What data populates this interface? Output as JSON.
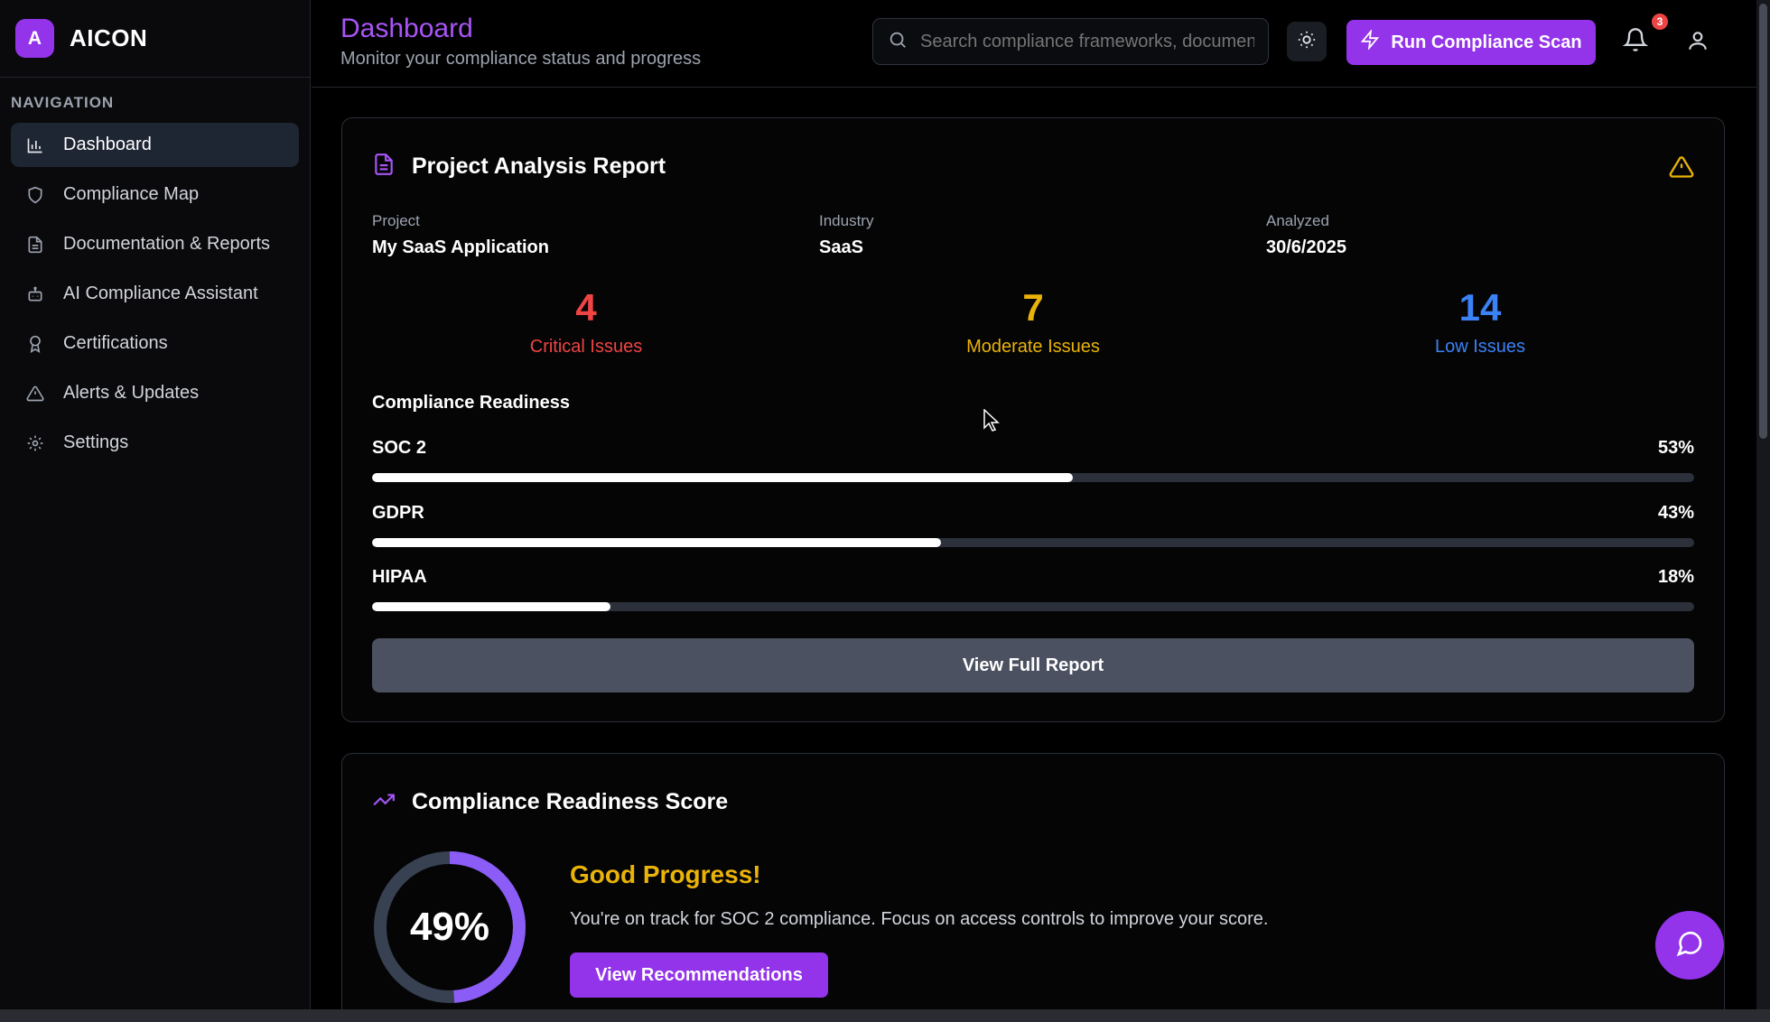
{
  "brand": {
    "logo_letter": "A",
    "name": "AICON"
  },
  "sidebar": {
    "section_title": "NAVIGATION",
    "items": [
      {
        "label": "Dashboard",
        "icon": "bar-chart-icon",
        "active": true
      },
      {
        "label": "Compliance Map",
        "icon": "shield-icon"
      },
      {
        "label": "Documentation & Reports",
        "icon": "document-icon"
      },
      {
        "label": "AI Compliance Assistant",
        "icon": "bot-icon"
      },
      {
        "label": "Certifications",
        "icon": "award-icon"
      },
      {
        "label": "Alerts & Updates",
        "icon": "warning-icon"
      },
      {
        "label": "Settings",
        "icon": "gear-icon"
      }
    ]
  },
  "header": {
    "title": "Dashboard",
    "subtitle": "Monitor your compliance status and progress",
    "search_placeholder": "Search compliance frameworks, documents...",
    "scan_label": "Run Compliance Scan",
    "notification_count": "3"
  },
  "report": {
    "title": "Project Analysis Report",
    "project_label": "Project",
    "project_value": "My SaaS Application",
    "industry_label": "Industry",
    "industry_value": "SaaS",
    "analyzed_label": "Analyzed",
    "analyzed_value": "30/6/2025",
    "critical_count": "4",
    "critical_label": "Critical Issues",
    "moderate_count": "7",
    "moderate_label": "Moderate Issues",
    "low_count": "14",
    "low_label": "Low Issues",
    "readiness_title": "Compliance Readiness",
    "frameworks": [
      {
        "name": "SOC 2",
        "percent_label": "53%",
        "value": 53
      },
      {
        "name": "GDPR",
        "percent_label": "43%",
        "value": 43
      },
      {
        "name": "HIPAA",
        "percent_label": "18%",
        "value": 18
      }
    ],
    "full_report_label": "View Full Report"
  },
  "score": {
    "title": "Compliance Readiness Score",
    "value": 49,
    "value_label": "49%",
    "headline": "Good Progress!",
    "description": "You're on track for SOC 2 compliance. Focus on access controls to improve your score.",
    "button_label": "View Recommendations"
  },
  "colors": {
    "accent": "#9333ea",
    "critical": "#ef4444",
    "moderate": "#eab308",
    "low": "#3b82f6"
  }
}
